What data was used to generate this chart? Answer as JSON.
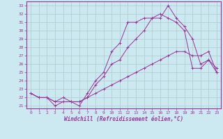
{
  "xlabel": "Windchill (Refroidissement éolien,°C)",
  "background_color": "#cce8f0",
  "grid_color": "#aacccc",
  "line_color": "#993399",
  "xlim": [
    -0.5,
    23.5
  ],
  "ylim": [
    20.7,
    33.5
  ],
  "yticks": [
    21,
    22,
    23,
    24,
    25,
    26,
    27,
    28,
    29,
    30,
    31,
    32,
    33
  ],
  "xticks": [
    0,
    1,
    2,
    3,
    4,
    5,
    6,
    7,
    8,
    9,
    10,
    11,
    12,
    13,
    14,
    15,
    16,
    17,
    18,
    19,
    20,
    21,
    22,
    23
  ],
  "series": [
    {
      "x": [
        0,
        1,
        2,
        3,
        4,
        5,
        6,
        7,
        8,
        9,
        10,
        11,
        12,
        13,
        14,
        15,
        16,
        17,
        18,
        19,
        20,
        21,
        22,
        23
      ],
      "y": [
        22.5,
        22.0,
        22.0,
        21.5,
        21.5,
        21.5,
        21.0,
        22.5,
        24.0,
        25.0,
        27.5,
        28.5,
        31.0,
        31.0,
        31.5,
        31.5,
        31.5,
        33.0,
        31.5,
        30.5,
        29.0,
        26.0,
        26.5,
        25.5
      ]
    },
    {
      "x": [
        0,
        1,
        2,
        3,
        4,
        5,
        6,
        7,
        8,
        9,
        10,
        11,
        12,
        13,
        14,
        15,
        16,
        17,
        18,
        19,
        20,
        21,
        22,
        23
      ],
      "y": [
        22.5,
        22.0,
        22.0,
        21.5,
        22.0,
        21.5,
        21.5,
        22.0,
        23.5,
        24.5,
        26.0,
        26.5,
        28.0,
        29.0,
        30.0,
        31.5,
        32.0,
        31.5,
        31.0,
        30.0,
        25.5,
        25.5,
        26.5,
        25.0
      ]
    },
    {
      "x": [
        0,
        1,
        2,
        3,
        4,
        5,
        6,
        7,
        8,
        9,
        10,
        11,
        12,
        13,
        14,
        15,
        16,
        17,
        18,
        19,
        20,
        21,
        22,
        23
      ],
      "y": [
        22.5,
        22.0,
        22.0,
        21.0,
        21.5,
        21.5,
        21.5,
        22.0,
        22.5,
        23.0,
        23.5,
        24.0,
        24.5,
        25.0,
        25.5,
        26.0,
        26.5,
        27.0,
        27.5,
        27.5,
        27.0,
        27.0,
        27.5,
        25.0
      ]
    }
  ]
}
